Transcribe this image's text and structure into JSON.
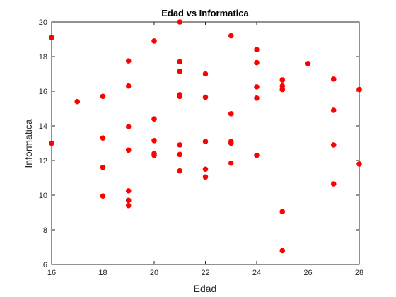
{
  "chart_data": {
    "type": "scatter",
    "title": "Edad vs Informatica",
    "xlabel": "Edad",
    "ylabel": "Informatica",
    "xlim": [
      16,
      28
    ],
    "ylim": [
      6,
      20
    ],
    "xticks": [
      16,
      18,
      20,
      22,
      24,
      26,
      28
    ],
    "yticks": [
      6,
      8,
      10,
      12,
      14,
      16,
      18,
      20
    ],
    "grid": false,
    "marker_color": "#ff0000",
    "points": [
      {
        "x": 16,
        "y": 19.1
      },
      {
        "x": 16,
        "y": 13.0
      },
      {
        "x": 17,
        "y": 15.4
      },
      {
        "x": 18,
        "y": 15.7
      },
      {
        "x": 18,
        "y": 13.3
      },
      {
        "x": 18,
        "y": 11.6
      },
      {
        "x": 18,
        "y": 9.95
      },
      {
        "x": 19,
        "y": 17.75
      },
      {
        "x": 19,
        "y": 16.3
      },
      {
        "x": 19,
        "y": 13.95
      },
      {
        "x": 19,
        "y": 12.6
      },
      {
        "x": 19,
        "y": 10.25
      },
      {
        "x": 19,
        "y": 9.7
      },
      {
        "x": 19,
        "y": 9.4
      },
      {
        "x": 20,
        "y": 18.9
      },
      {
        "x": 20,
        "y": 14.4
      },
      {
        "x": 20,
        "y": 13.15
      },
      {
        "x": 20,
        "y": 12.4
      },
      {
        "x": 20,
        "y": 12.3
      },
      {
        "x": 21,
        "y": 20.0
      },
      {
        "x": 21,
        "y": 17.7
      },
      {
        "x": 21,
        "y": 17.15
      },
      {
        "x": 21,
        "y": 15.8
      },
      {
        "x": 21,
        "y": 15.7
      },
      {
        "x": 21,
        "y": 12.9
      },
      {
        "x": 21,
        "y": 12.35
      },
      {
        "x": 21,
        "y": 11.4
      },
      {
        "x": 22,
        "y": 17.0
      },
      {
        "x": 22,
        "y": 15.65
      },
      {
        "x": 22,
        "y": 13.1
      },
      {
        "x": 22,
        "y": 11.5
      },
      {
        "x": 22,
        "y": 11.05
      },
      {
        "x": 23,
        "y": 19.2
      },
      {
        "x": 23,
        "y": 14.7
      },
      {
        "x": 23,
        "y": 13.1
      },
      {
        "x": 23,
        "y": 13.0
      },
      {
        "x": 23,
        "y": 11.85
      },
      {
        "x": 24,
        "y": 18.4
      },
      {
        "x": 24,
        "y": 17.65
      },
      {
        "x": 24,
        "y": 16.25
      },
      {
        "x": 24,
        "y": 15.6
      },
      {
        "x": 24,
        "y": 12.3
      },
      {
        "x": 25,
        "y": 16.65
      },
      {
        "x": 25,
        "y": 16.3
      },
      {
        "x": 25,
        "y": 16.1
      },
      {
        "x": 25,
        "y": 9.05
      },
      {
        "x": 25,
        "y": 6.8
      },
      {
        "x": 26,
        "y": 17.6
      },
      {
        "x": 27,
        "y": 16.7
      },
      {
        "x": 27,
        "y": 14.9
      },
      {
        "x": 27,
        "y": 12.9
      },
      {
        "x": 27,
        "y": 10.65
      },
      {
        "x": 28,
        "y": 16.1
      },
      {
        "x": 28,
        "y": 11.8
      }
    ]
  }
}
